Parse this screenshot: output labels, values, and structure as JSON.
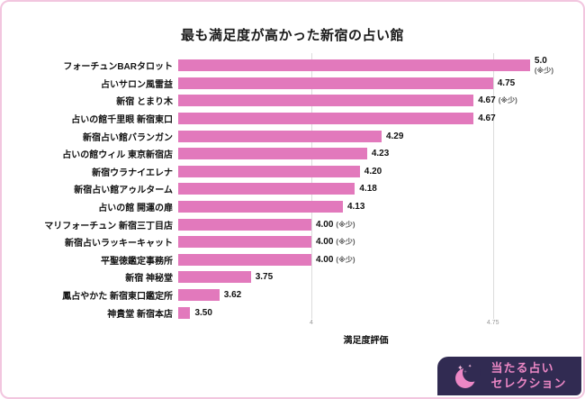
{
  "chart_data": {
    "type": "bar",
    "orientation": "horizontal",
    "title": "最も満足度が高かった新宿の占い館",
    "xlabel": "満足度評価",
    "xlim": [
      3.45,
      5.0
    ],
    "gridlines": [
      4,
      4.75
    ],
    "items": [
      {
        "label": "フォーチュンBARタロット",
        "value": 5.0,
        "display": "5.0",
        "note": "(※少)",
        "note_stacked": true
      },
      {
        "label": "占いサロン風雷益",
        "value": 4.75,
        "display": "4.75",
        "note": ""
      },
      {
        "label": "新宿 とまり木",
        "value": 4.67,
        "display": "4.67",
        "note": "(※少)"
      },
      {
        "label": "占いの館千里眼 新宿東口",
        "value": 4.67,
        "display": "4.67",
        "note": ""
      },
      {
        "label": "新宿占い館バランガン",
        "value": 4.29,
        "display": "4.29",
        "note": ""
      },
      {
        "label": "占いの館ウィル 東京新宿店",
        "value": 4.23,
        "display": "4.23",
        "note": ""
      },
      {
        "label": "新宿ウラナイエレナ",
        "value": 4.2,
        "display": "4.20",
        "note": ""
      },
      {
        "label": "新宿占い館アゥルターム",
        "value": 4.18,
        "display": "4.18",
        "note": ""
      },
      {
        "label": "占いの館 開運の扉",
        "value": 4.13,
        "display": "4.13",
        "note": ""
      },
      {
        "label": "マリフォーチュン 新宿三丁目店",
        "value": 4.0,
        "display": "4.00",
        "note": "(※少)"
      },
      {
        "label": "新宿占いラッキーキャット",
        "value": 4.0,
        "display": "4.00",
        "note": "(※少)"
      },
      {
        "label": "平聖徳鑑定事務所",
        "value": 4.0,
        "display": "4.00",
        "note": "(※少)"
      },
      {
        "label": "新宿 神秘堂",
        "value": 3.75,
        "display": "3.75",
        "note": ""
      },
      {
        "label": "鳳占やかた 新宿東口鑑定所",
        "value": 3.62,
        "display": "3.62",
        "note": ""
      },
      {
        "label": "神貴堂 新宿本店",
        "value": 3.5,
        "display": "3.50",
        "note": ""
      }
    ]
  },
  "badge": {
    "line1": "当たる占い",
    "line2": "セレクション"
  },
  "colors": {
    "bar": "#e279bc",
    "page_border": "#f2c6df",
    "badge_bg": "#312b52",
    "badge_accent": "#ec87c5",
    "grid": "#dcdcdc"
  }
}
